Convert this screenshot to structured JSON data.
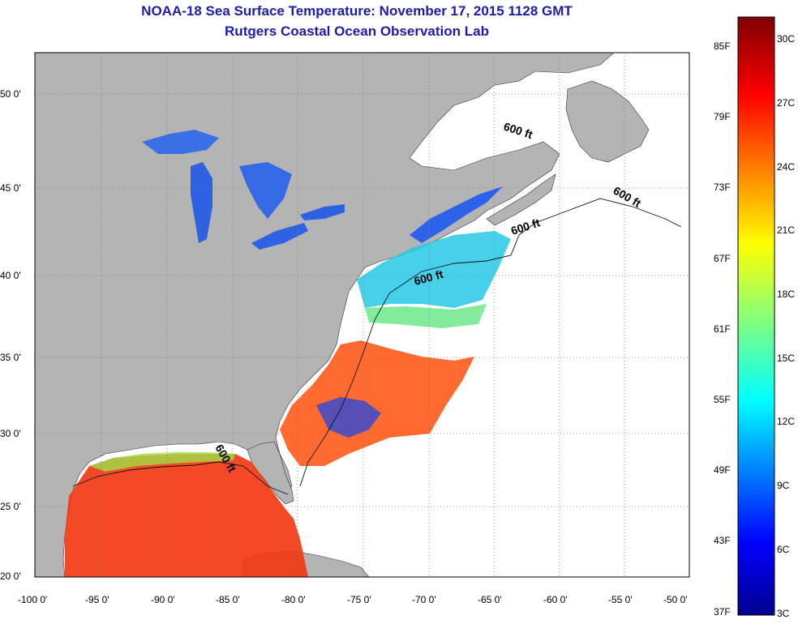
{
  "title": "NOAA-18 Sea Surface Temperature:  November 17, 2015 1128 GMT",
  "subtitle": "Rutgers Coastal Ocean Observation Lab",
  "map": {
    "lon_range": [
      -100,
      -50
    ],
    "lat_range": [
      20,
      52.5
    ],
    "lon_ticks": [
      "-100 0'",
      "-95 0'",
      "-90 0'",
      "-85 0'",
      "-80 0'",
      "-75 0'",
      "-70 0'",
      "-65 0'",
      "-60 0'",
      "-55 0'",
      "-50 0'"
    ],
    "lat_ticks": [
      "20 0'",
      "25 0'",
      "30 0'",
      "35 0'",
      "40 0'",
      "45 0'",
      "50 0'"
    ],
    "isobath_labels": [
      "600 ft",
      "600 ft",
      "600 ft",
      "600 ft",
      "600 ft"
    ],
    "colors": {
      "land": "#b4b4b4",
      "water": "#ffffff",
      "grid": "#888888"
    }
  },
  "colorbar": {
    "fahrenheit_labels": [
      "85F",
      "79F",
      "73F",
      "67F",
      "61F",
      "55F",
      "49F",
      "43F",
      "37F"
    ],
    "celsius_labels": [
      "30C",
      "27C",
      "24C",
      "21C",
      "18C",
      "15C",
      "12C",
      "9C",
      "6C",
      "3C"
    ],
    "range_c": [
      3,
      31
    ]
  }
}
